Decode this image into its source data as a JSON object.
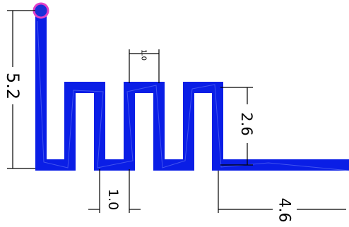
{
  "colors": {
    "trace": "#0a1ee6",
    "trace_highlight": "#6f7ff5",
    "dimension": "#000000",
    "feed_ring": "#e040c8",
    "feed_center": "#1a2fd8",
    "background": "#ffffff"
  },
  "dimensions": {
    "height_total": "5.2",
    "meander_height": "2.6",
    "top_width": "1.0",
    "gap_width": "1.0",
    "tail_length": "4.6"
  }
}
